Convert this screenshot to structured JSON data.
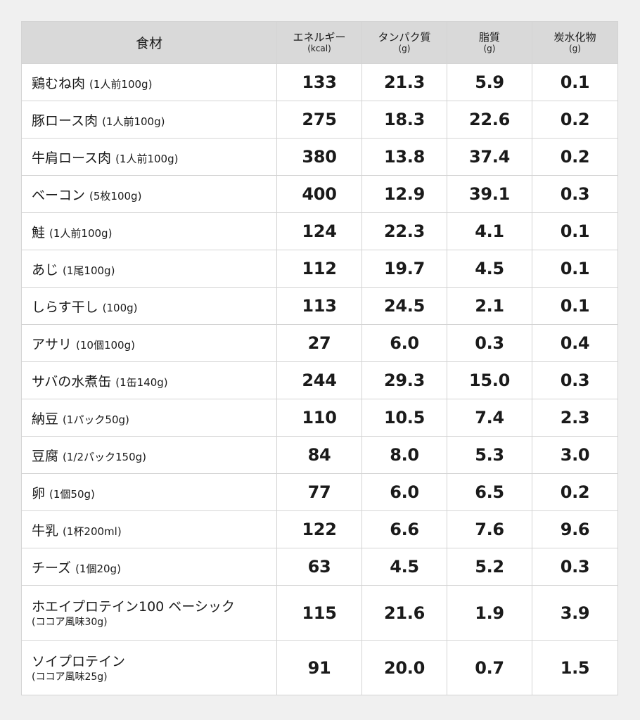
{
  "header": {
    "food": "食材",
    "columns": [
      {
        "label": "エネルギー",
        "unit": "(kcal)"
      },
      {
        "label": "タンパク質",
        "unit": "(g)"
      },
      {
        "label": "脂質",
        "unit": "(g)"
      },
      {
        "label": "炭水化物",
        "unit": "(g)"
      }
    ]
  },
  "rows": [
    {
      "name": "鶏むね肉",
      "serving": "(1人前100g)",
      "energy": "133",
      "protein": "21.3",
      "fat": "5.9",
      "carbs": "0.1"
    },
    {
      "name": "豚ロース肉",
      "serving": "(1人前100g)",
      "energy": "275",
      "protein": "18.3",
      "fat": "22.6",
      "carbs": "0.2"
    },
    {
      "name": "牛肩ロース肉",
      "serving": "(1人前100g)",
      "energy": "380",
      "protein": "13.8",
      "fat": "37.4",
      "carbs": "0.2"
    },
    {
      "name": "ベーコン",
      "serving": "(5枚100g)",
      "energy": "400",
      "protein": "12.9",
      "fat": "39.1",
      "carbs": "0.3"
    },
    {
      "name": "鮭",
      "serving": "(1人前100g)",
      "energy": "124",
      "protein": "22.3",
      "fat": "4.1",
      "carbs": "0.1"
    },
    {
      "name": "あじ",
      "serving": "(1尾100g)",
      "energy": "112",
      "protein": "19.7",
      "fat": "4.5",
      "carbs": "0.1"
    },
    {
      "name": "しらす干し",
      "serving": "(100g)",
      "energy": "113",
      "protein": "24.5",
      "fat": "2.1",
      "carbs": "0.1"
    },
    {
      "name": "アサリ",
      "serving": "(10個100g)",
      "energy": "27",
      "protein": "6.0",
      "fat": "0.3",
      "carbs": "0.4"
    },
    {
      "name": "サバの水煮缶",
      "serving": "(1缶140g)",
      "energy": "244",
      "protein": "29.3",
      "fat": "15.0",
      "carbs": "0.3"
    },
    {
      "name": "納豆",
      "serving": "(1パック50g)",
      "energy": "110",
      "protein": "10.5",
      "fat": "7.4",
      "carbs": "2.3"
    },
    {
      "name": "豆腐",
      "serving": "(1/2パック150g)",
      "energy": "84",
      "protein": "8.0",
      "fat": "5.3",
      "carbs": "3.0"
    },
    {
      "name": "卵",
      "serving": "(1個50g)",
      "energy": "77",
      "protein": "6.0",
      "fat": "6.5",
      "carbs": "0.2"
    },
    {
      "name": "牛乳",
      "serving": "(1杯200ml)",
      "energy": "122",
      "protein": "6.6",
      "fat": "7.6",
      "carbs": "9.6"
    },
    {
      "name": "チーズ",
      "serving": "(1個20g)",
      "energy": "63",
      "protein": "4.5",
      "fat": "5.2",
      "carbs": "0.3"
    },
    {
      "name": "ホエイプロテイン100 ベーシック",
      "serving": "(ココア風味30g)",
      "energy": "115",
      "protein": "21.6",
      "fat": "1.9",
      "carbs": "3.9"
    },
    {
      "name": "ソイプロテイン",
      "serving": "(ココア風味25g)",
      "energy": "91",
      "protein": "20.0",
      "fat": "0.7",
      "carbs": "1.5"
    }
  ]
}
